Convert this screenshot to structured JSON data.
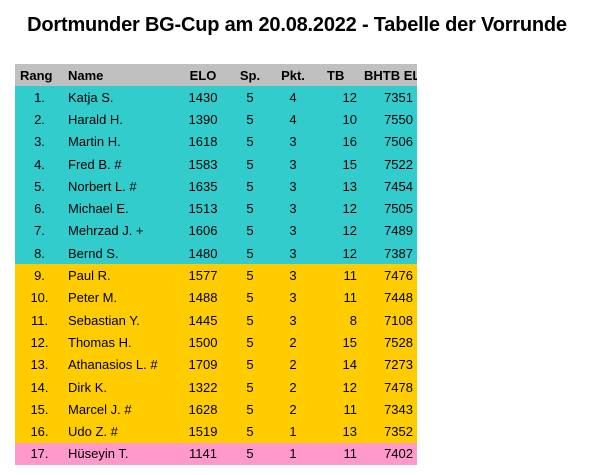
{
  "title": "Dortmunder BG-Cup am 20.08.2022 - Tabelle der Vorrunde",
  "colors": {
    "header": "#c0c0c0",
    "cyan": "#33cccc",
    "yellow": "#ffcc00",
    "pink": "#ff99cc"
  },
  "headers": {
    "rang": "Rang",
    "name": "Name",
    "elo": "ELO",
    "sp": "Sp.",
    "pkt": "Pkt.",
    "tb": "TB",
    "bhtb_elo": "BHTB ELO"
  },
  "rows": [
    {
      "rang": "1.",
      "name": "Katja S.",
      "elo": "1430",
      "sp": "5",
      "pkt": "4",
      "tb": "12",
      "bhtb_elo": "7351",
      "group": "cyan"
    },
    {
      "rang": "2.",
      "name": "Harald H.",
      "elo": "1390",
      "sp": "5",
      "pkt": "4",
      "tb": "10",
      "bhtb_elo": "7550",
      "group": "cyan"
    },
    {
      "rang": "3.",
      "name": "Martin H.",
      "elo": "1618",
      "sp": "5",
      "pkt": "3",
      "tb": "16",
      "bhtb_elo": "7506",
      "group": "cyan"
    },
    {
      "rang": "4.",
      "name": "Fred B. #",
      "elo": "1583",
      "sp": "5",
      "pkt": "3",
      "tb": "15",
      "bhtb_elo": "7522",
      "group": "cyan"
    },
    {
      "rang": "5.",
      "name": "Norbert L. #",
      "elo": "1635",
      "sp": "5",
      "pkt": "3",
      "tb": "13",
      "bhtb_elo": "7454",
      "group": "cyan"
    },
    {
      "rang": "6.",
      "name": "Michael E.",
      "elo": "1513",
      "sp": "5",
      "pkt": "3",
      "tb": "12",
      "bhtb_elo": "7505",
      "group": "cyan"
    },
    {
      "rang": "7.",
      "name": "Mehrzad J. +",
      "elo": "1606",
      "sp": "5",
      "pkt": "3",
      "tb": "12",
      "bhtb_elo": "7489",
      "group": "cyan"
    },
    {
      "rang": "8.",
      "name": "Bernd S.",
      "elo": "1480",
      "sp": "5",
      "pkt": "3",
      "tb": "12",
      "bhtb_elo": "7387",
      "group": "cyan"
    },
    {
      "rang": "9.",
      "name": "Paul R.",
      "elo": "1577",
      "sp": "5",
      "pkt": "3",
      "tb": "11",
      "bhtb_elo": "7476",
      "group": "yellow"
    },
    {
      "rang": "10.",
      "name": "Peter M.",
      "elo": "1488",
      "sp": "5",
      "pkt": "3",
      "tb": "11",
      "bhtb_elo": "7448",
      "group": "yellow"
    },
    {
      "rang": "11.",
      "name": "Sebastian Y.",
      "elo": "1445",
      "sp": "5",
      "pkt": "3",
      "tb": "8",
      "bhtb_elo": "7108",
      "group": "yellow"
    },
    {
      "rang": "12.",
      "name": "Thomas H.",
      "elo": "1500",
      "sp": "5",
      "pkt": "2",
      "tb": "15",
      "bhtb_elo": "7528",
      "group": "yellow"
    },
    {
      "rang": "13.",
      "name": "Athanasios L. #",
      "elo": "1709",
      "sp": "5",
      "pkt": "2",
      "tb": "14",
      "bhtb_elo": "7273",
      "group": "yellow"
    },
    {
      "rang": "14.",
      "name": "Dirk K.",
      "elo": "1322",
      "sp": "5",
      "pkt": "2",
      "tb": "12",
      "bhtb_elo": "7478",
      "group": "yellow"
    },
    {
      "rang": "15.",
      "name": "Marcel J. #",
      "elo": "1628",
      "sp": "5",
      "pkt": "2",
      "tb": "11",
      "bhtb_elo": "7343",
      "group": "yellow"
    },
    {
      "rang": "16.",
      "name": "Udo Z. #",
      "elo": "1519",
      "sp": "5",
      "pkt": "1",
      "tb": "13",
      "bhtb_elo": "7352",
      "group": "yellow"
    },
    {
      "rang": "17.",
      "name": "Hüseyin T.",
      "elo": "1141",
      "sp": "5",
      "pkt": "1",
      "tb": "11",
      "bhtb_elo": "7402",
      "group": "pink"
    }
  ]
}
